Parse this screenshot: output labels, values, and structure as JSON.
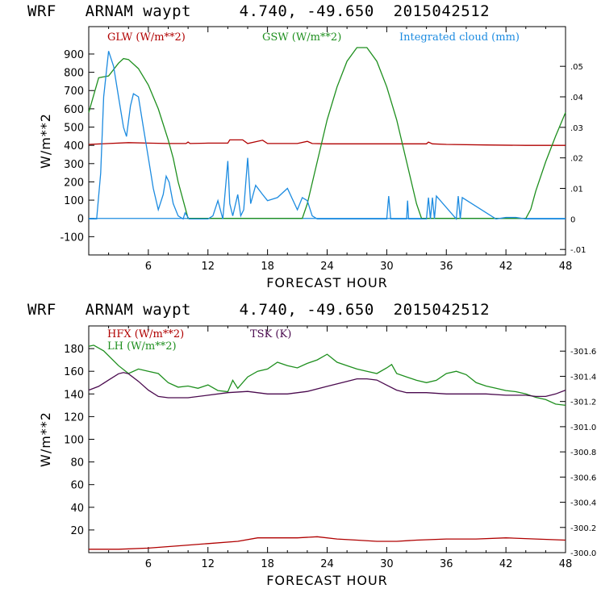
{
  "title_top": "WRF   ARNAM waypt     4.740, -49.650  2015042512",
  "title_bottom": "WRF   ARNAM waypt     4.740, -49.650  2015042512",
  "chart_data": [
    {
      "type": "line",
      "xlabel": "FORECAST HOUR",
      "ylabel": "W/m**2",
      "xlim": [
        0,
        48
      ],
      "ylim": [
        -200,
        1050
      ],
      "xticks": [
        "6",
        "12",
        "18",
        "24",
        "30",
        "36",
        "42",
        "48"
      ],
      "yticks": [
        "-100",
        "0",
        "100",
        "200",
        "300",
        "400",
        "500",
        "600",
        "700",
        "800",
        "900"
      ],
      "y2lim": [
        -0.0118,
        0.063
      ],
      "y2ticks": [
        "-.01",
        "0",
        ".01",
        ".02",
        ".03",
        ".04",
        ".05"
      ],
      "series": [
        {
          "name": "GLW (W/m**2)",
          "color": "#b00000",
          "axis": "left",
          "x": [
            0,
            2,
            4,
            6,
            8,
            9.8,
            10,
            10.2,
            12,
            14,
            14.2,
            15.5,
            16,
            17.5,
            18,
            19,
            20,
            21,
            22,
            22.5,
            24,
            28,
            34,
            34.2,
            34.6,
            36,
            40,
            44,
            48
          ],
          "y": [
            405,
            410,
            415,
            412,
            410,
            410,
            418,
            410,
            412,
            412,
            430,
            430,
            410,
            428,
            410,
            410,
            410,
            410,
            422,
            410,
            408,
            408,
            408,
            418,
            408,
            405,
            402,
            400,
            400
          ]
        },
        {
          "name": "GSW (W/m**2)",
          "color": "#1e8f1e",
          "axis": "left",
          "x": [
            0,
            1,
            2,
            3,
            3.5,
            4,
            5,
            6,
            7,
            8,
            8.5,
            9,
            10,
            21.5,
            22,
            23,
            24,
            25,
            26,
            27,
            28,
            29,
            30,
            31,
            32,
            33,
            33.5,
            44,
            44.5,
            45,
            46,
            47,
            48
          ],
          "y": [
            580,
            770,
            780,
            850,
            875,
            870,
            820,
            730,
            600,
            430,
            330,
            200,
            0,
            0,
            80,
            310,
            540,
            720,
            860,
            935,
            935,
            860,
            720,
            540,
            310,
            80,
            0,
            0,
            50,
            150,
            310,
            450,
            580
          ]
        },
        {
          "name": "Integrated cloud (mm)",
          "color": "#1c8be0",
          "axis": "right",
          "x": [
            0,
            0.8,
            1.2,
            1.5,
            2,
            2.5,
            3,
            3.5,
            3.8,
            4.2,
            4.5,
            5,
            5.5,
            6,
            6.5,
            7,
            7.5,
            7.8,
            8.1,
            8.5,
            9,
            9.5,
            9.7,
            9.9,
            10.1,
            11,
            12,
            12.5,
            13,
            13.5,
            14,
            14.2,
            14.5,
            15,
            15.3,
            15.6,
            16,
            16.3,
            16.8,
            17.5,
            18,
            19,
            20,
            21,
            21.5,
            22,
            22.5,
            23,
            30,
            30.2,
            30.4,
            32,
            32.1,
            32.2,
            34,
            34.2,
            34.4,
            34.6,
            34.8,
            35,
            37,
            37.2,
            37.4,
            37.6,
            41,
            42,
            43,
            44,
            48
          ],
          "y": [
            0,
            0,
            0.015,
            0.04,
            0.055,
            0.05,
            0.04,
            0.03,
            0.027,
            0.037,
            0.041,
            0.04,
            0.03,
            0.02,
            0.01,
            0.003,
            0.008,
            0.014,
            0.012,
            0.005,
            0.001,
            0,
            0.002,
            0.001,
            0,
            0,
            0,
            0.001,
            0.006,
            0,
            0.019,
            0.005,
            0.001,
            0.008,
            0.001,
            0.003,
            0.02,
            0.005,
            0.011,
            0.008,
            0.006,
            0.007,
            0.01,
            0.003,
            0.007,
            0.006,
            0.001,
            0,
            0,
            0.0075,
            0,
            0,
            0.006,
            0,
            0,
            0.007,
            0,
            0.007,
            0,
            0.0075,
            0,
            0.0075,
            0,
            0.007,
            0,
            0.0005,
            0.0005,
            0,
            0
          ]
        }
      ]
    },
    {
      "type": "line",
      "xlabel": "FORECAST HOUR",
      "ylabel": "W/m**2",
      "xlim": [
        0,
        48
      ],
      "ylim": [
        0,
        200
      ],
      "xticks": [
        "6",
        "12",
        "18",
        "24",
        "30",
        "36",
        "42",
        "48"
      ],
      "yticks": [
        "20",
        "40",
        "60",
        "80",
        "100",
        "120",
        "140",
        "160",
        "180"
      ],
      "y2lim": [
        300.0,
        301.8
      ],
      "y2ticks": [
        "300.0",
        "300.2",
        "300.4",
        "300.6",
        "300.8",
        "301.0",
        "301.2",
        "301.4",
        "301.6"
      ],
      "series": [
        {
          "name": "HFX (W/m**2)",
          "color": "#b00000",
          "axis": "left",
          "x": [
            0,
            3,
            6,
            9,
            12,
            15,
            17,
            19,
            21,
            23,
            25,
            27,
            29,
            31,
            33,
            36,
            39,
            42,
            45,
            48
          ],
          "y": [
            3,
            3,
            4,
            6,
            8,
            10,
            13,
            13,
            13,
            14,
            12,
            11,
            10,
            10,
            11,
            12,
            12,
            13,
            12,
            11
          ]
        },
        {
          "name": "LH  (W/m**2)",
          "color": "#1e8f1e",
          "axis": "left",
          "x": [
            0,
            0.5,
            1.5,
            3,
            4,
            5,
            6,
            7,
            8,
            9,
            10,
            11,
            12,
            13,
            14,
            14.5,
            15,
            16,
            17,
            18,
            19,
            20,
            21,
            22,
            23,
            24,
            25,
            26,
            27,
            28,
            29,
            30,
            30.5,
            31,
            32,
            33,
            34,
            35,
            36,
            37,
            38,
            39,
            40,
            41,
            42,
            43,
            44,
            45,
            46,
            47,
            48
          ],
          "y": [
            182,
            183,
            178,
            165,
            158,
            162,
            160,
            158,
            150,
            146,
            147,
            145,
            148,
            143,
            142,
            152,
            145,
            155,
            160,
            162,
            168,
            165,
            163,
            167,
            170,
            175,
            168,
            165,
            162,
            160,
            158,
            163,
            166,
            158,
            155,
            152,
            150,
            152,
            158,
            160,
            157,
            150,
            147,
            145,
            143,
            142,
            140,
            137,
            135,
            131,
            130
          ]
        },
        {
          "name": "TSK (K)",
          "color": "#4a0a4e",
          "axis": "right",
          "x": [
            0,
            1,
            2,
            3,
            3.5,
            4,
            5,
            6,
            7,
            8,
            10,
            12,
            14,
            16,
            18,
            20,
            22,
            24,
            26,
            27,
            28,
            29,
            30,
            31,
            32,
            34,
            36,
            38,
            40,
            42,
            44,
            45,
            46,
            47,
            48
          ],
          "y": [
            301.29,
            301.32,
            301.37,
            301.42,
            301.43,
            301.42,
            301.36,
            301.29,
            301.24,
            301.23,
            301.23,
            301.25,
            301.27,
            301.28,
            301.26,
            301.26,
            301.28,
            301.32,
            301.36,
            301.38,
            301.38,
            301.37,
            301.33,
            301.29,
            301.27,
            301.27,
            301.26,
            301.26,
            301.26,
            301.25,
            301.25,
            301.24,
            301.24,
            301.26,
            301.29
          ]
        }
      ]
    }
  ]
}
